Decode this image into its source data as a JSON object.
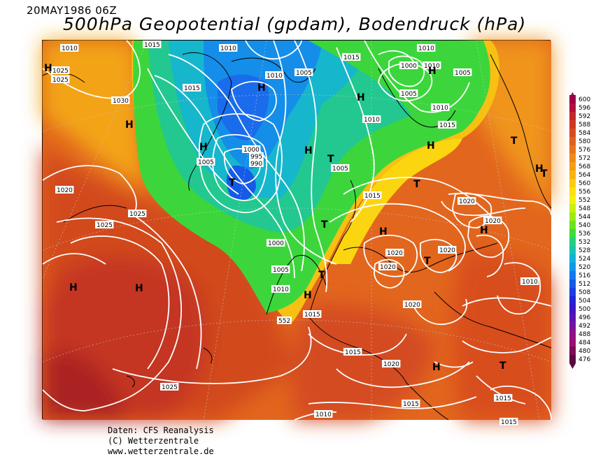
{
  "header": {
    "date": "20MAY1986 06Z",
    "title": "500hPa Geopotential (gpdam), Bodendruck (hPa)"
  },
  "footer": {
    "line1": "Daten: CFS Reanalysis",
    "line2": "(C) Wetterzentrale",
    "line3": "www.wetterzentrale.de"
  },
  "legend": {
    "levels": [
      "600",
      "596",
      "592",
      "588",
      "584",
      "580",
      "576",
      "572",
      "568",
      "564",
      "560",
      "556",
      "552",
      "548",
      "544",
      "540",
      "536",
      "532",
      "528",
      "524",
      "520",
      "516",
      "512",
      "508",
      "504",
      "500",
      "496",
      "492",
      "488",
      "484",
      "480",
      "476"
    ],
    "colors": [
      "#a10048",
      "#b0103c",
      "#c0282c",
      "#cc3a22",
      "#d64c20",
      "#e0601e",
      "#e8741a",
      "#ef8a16",
      "#f49e14",
      "#f8b412",
      "#fbcc10",
      "#fde010",
      "#f2f010",
      "#c8f010",
      "#9aec14",
      "#6ae420",
      "#3cdc3c",
      "#24d07c",
      "#18c4b0",
      "#14b0dc",
      "#1496ec",
      "#1478ee",
      "#165ae8",
      "#1a3ee0",
      "#2424d4",
      "#3c18c4",
      "#5814b0",
      "#74129c",
      "#8c1088",
      "#9a1070",
      "#7a0c58",
      "#5a0840"
    ]
  },
  "map": {
    "contour_labels": [
      {
        "text": "1025",
        "id": "a1"
      },
      {
        "text": "1025",
        "id": "a2"
      },
      {
        "text": "1030",
        "id": "a3"
      },
      {
        "text": "1015",
        "id": "a4"
      },
      {
        "text": "1010",
        "id": "a5"
      },
      {
        "text": "1010",
        "id": "a6"
      },
      {
        "text": "1005",
        "id": "a7"
      },
      {
        "text": "1015",
        "id": "a8"
      },
      {
        "text": "1000",
        "id": "a9"
      },
      {
        "text": "1005",
        "id": "a10"
      },
      {
        "text": "1005",
        "id": "a11"
      },
      {
        "text": "1010",
        "id": "a12"
      },
      {
        "text": "1010",
        "id": "a13"
      },
      {
        "text": "1015",
        "id": "a14"
      },
      {
        "text": "1010",
        "id": "a15"
      },
      {
        "text": "1000",
        "id": "a16"
      },
      {
        "text": "995",
        "id": "a17"
      },
      {
        "text": "990",
        "id": "a18"
      },
      {
        "text": "1005",
        "id": "a19"
      },
      {
        "text": "1005",
        "id": "a20"
      },
      {
        "text": "1020",
        "id": "a21"
      },
      {
        "text": "1025",
        "id": "a22"
      },
      {
        "text": "1025",
        "id": "a23"
      },
      {
        "text": "1015",
        "id": "a24"
      },
      {
        "text": "1000",
        "id": "a25"
      },
      {
        "text": "1005",
        "id": "a26"
      },
      {
        "text": "1010",
        "id": "a27"
      },
      {
        "text": "552",
        "id": "a28"
      },
      {
        "text": "1015",
        "id": "a29"
      },
      {
        "text": "1020",
        "id": "a30"
      },
      {
        "text": "1020",
        "id": "a31"
      },
      {
        "text": "1020",
        "id": "a32"
      },
      {
        "text": "1020",
        "id": "a33"
      },
      {
        "text": "1020",
        "id": "a34"
      },
      {
        "text": "1010",
        "id": "a35"
      },
      {
        "text": "1020",
        "id": "a36"
      },
      {
        "text": "1015",
        "id": "a37"
      },
      {
        "text": "1020",
        "id": "a38"
      },
      {
        "text": "1025",
        "id": "a39"
      },
      {
        "text": "1015",
        "id": "a40"
      },
      {
        "text": "1010",
        "id": "a41"
      },
      {
        "text": "1015",
        "id": "a42"
      },
      {
        "text": "1015",
        "id": "a43"
      },
      {
        "text": "1010",
        "id": "a44"
      },
      {
        "text": "1015",
        "id": "a45"
      },
      {
        "text": "1010",
        "id": "a46"
      }
    ],
    "pressure_centers": [
      "H",
      "H",
      "H",
      "H",
      "T",
      "H",
      "H",
      "T",
      "H",
      "T",
      "H",
      "T",
      "T",
      "H",
      "H",
      "T",
      "H",
      "T",
      "T",
      "H",
      "H",
      "T",
      "H",
      "H"
    ]
  }
}
